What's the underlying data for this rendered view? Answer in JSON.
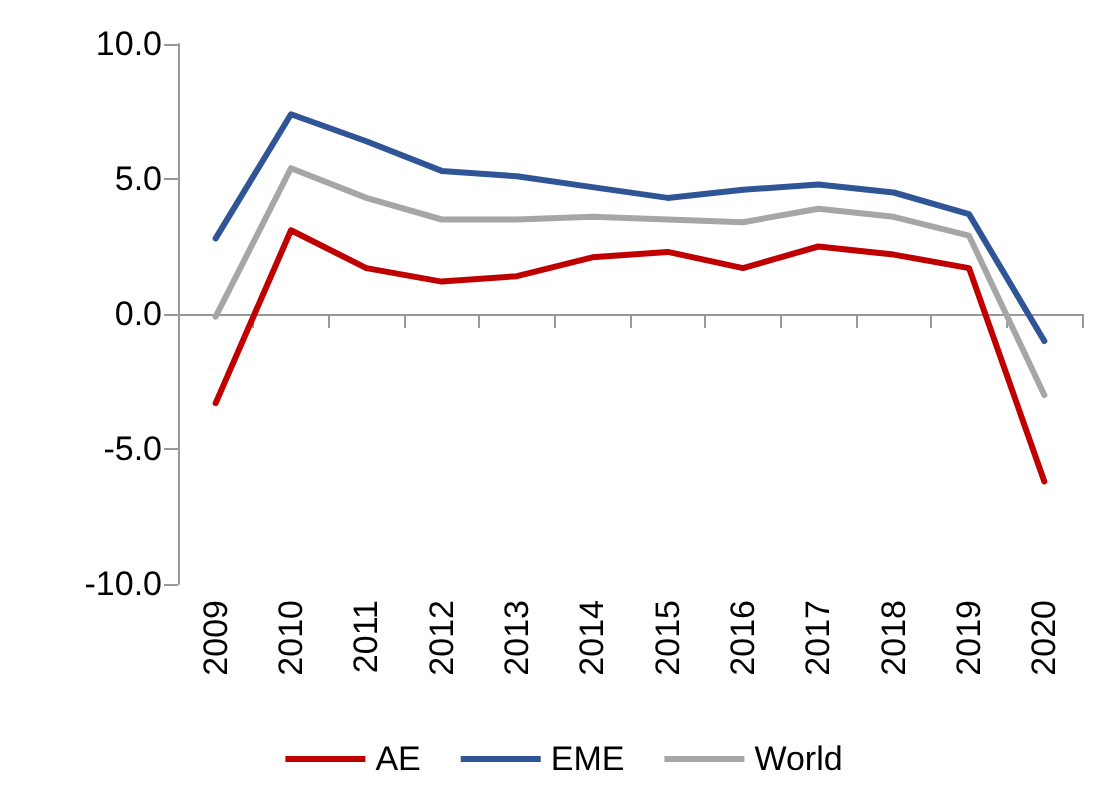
{
  "chart_data": {
    "type": "line",
    "categories": [
      "2009",
      "2010",
      "2011",
      "2012",
      "2013",
      "2014",
      "2015",
      "2016",
      "2017",
      "2018",
      "2019",
      "2020"
    ],
    "series": [
      {
        "name": "AE",
        "color": "#c00000",
        "values": [
          -3.3,
          3.1,
          1.7,
          1.2,
          1.4,
          2.1,
          2.3,
          1.7,
          2.5,
          2.2,
          1.7,
          -6.2
        ]
      },
      {
        "name": "EME",
        "color": "#2f5597",
        "values": [
          2.8,
          7.4,
          6.4,
          5.3,
          5.1,
          4.7,
          4.3,
          4.6,
          4.8,
          4.5,
          3.7,
          -1.0
        ]
      },
      {
        "name": "World",
        "color": "#a6a6a6",
        "values": [
          -0.1,
          5.4,
          4.3,
          3.5,
          3.5,
          3.6,
          3.5,
          3.4,
          3.9,
          3.6,
          2.9,
          -3.0
        ]
      }
    ],
    "ylim": [
      -10,
      10
    ],
    "yticks": [
      {
        "value": -10,
        "label": "-10.0"
      },
      {
        "value": -5,
        "label": "-5.0"
      },
      {
        "value": 0,
        "label": "0.0"
      },
      {
        "value": 5,
        "label": "5.0"
      },
      {
        "value": 10,
        "label": "10.0"
      }
    ],
    "legend": "bottom",
    "marker": "none",
    "line_style": "solid"
  }
}
